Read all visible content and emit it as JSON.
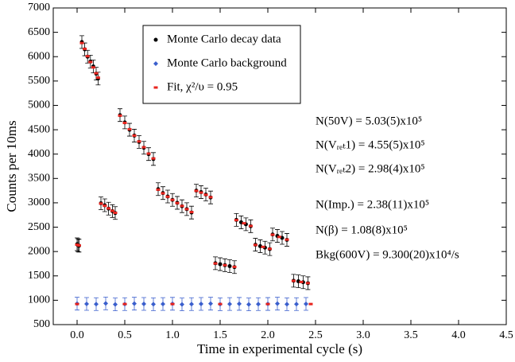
{
  "chart_data": {
    "type": "scatter",
    "xlabel": "Time in experimental cycle (s)",
    "ylabel": "Counts per 10ms",
    "xlim": [
      -0.25,
      4.5
    ],
    "xticks": [
      {
        "value": 0,
        "label": "0.0"
      },
      0.5,
      {
        "value": 1,
        "label": "1.0"
      },
      1.5,
      {
        "value": 2,
        "label": "2.0"
      },
      2.5,
      {
        "value": 3,
        "label": "3.0"
      },
      3.5,
      {
        "value": 4,
        "label": "4.0"
      },
      4.5
    ],
    "ylim": [
      500,
      7000
    ],
    "yticks": [
      500,
      1000,
      1500,
      2000,
      2500,
      3000,
      3500,
      4000,
      4500,
      5000,
      5500,
      6000,
      6500,
      7000
    ],
    "legend_loc": "upper center",
    "series": [
      {
        "name": "Monte Carlo decay data",
        "color": "#000000",
        "marker": "circle",
        "x": [
          0.0,
          0.01,
          0.02,
          0.05,
          0.08,
          0.11,
          0.14,
          0.17,
          0.2,
          0.22,
          0.25,
          0.29,
          0.33,
          0.37,
          0.4,
          0.45,
          0.5,
          0.55,
          0.6,
          0.65,
          0.7,
          0.75,
          0.8,
          0.85,
          0.9,
          0.95,
          1.0,
          1.05,
          1.1,
          1.15,
          1.2,
          1.25,
          1.3,
          1.35,
          1.4,
          1.45,
          1.5,
          1.55,
          1.6,
          1.65,
          1.67,
          1.72,
          1.77,
          1.82,
          1.87,
          1.92,
          1.97,
          2.02,
          2.05,
          2.1,
          2.15,
          2.2,
          2.27,
          2.32,
          2.37,
          2.42
        ],
        "values": [
          2150,
          2130,
          2120,
          6300,
          6150,
          6000,
          5900,
          5800,
          5650,
          5550,
          2990,
          2950,
          2880,
          2830,
          2790,
          4800,
          4650,
          4500,
          4380,
          4250,
          4130,
          4000,
          3900,
          3280,
          3200,
          3130,
          3060,
          3000,
          2930,
          2870,
          2800,
          3250,
          3220,
          3170,
          3110,
          1760,
          1740,
          1720,
          1700,
          1680,
          2650,
          2600,
          2560,
          2520,
          2140,
          2110,
          2080,
          2050,
          2350,
          2320,
          2280,
          2240,
          1400,
          1390,
          1370,
          1350
        ]
      },
      {
        "name": "Monte Carlo background",
        "color": "#3a5fcd",
        "marker": "diamond",
        "x": [
          0.0,
          0.1,
          0.2,
          0.3,
          0.4,
          0.5,
          0.6,
          0.7,
          0.8,
          0.9,
          1.0,
          1.1,
          1.2,
          1.3,
          1.4,
          1.5,
          1.6,
          1.7,
          1.8,
          1.9,
          2.0,
          2.1,
          2.2,
          2.3,
          2.4
        ],
        "values": [
          930,
          925,
          920,
          935,
          915,
          920,
          930,
          925,
          918,
          922,
          928,
          915,
          920,
          925,
          930,
          918,
          922,
          926,
          915,
          920,
          924,
          930,
          918,
          920,
          925
        ]
      },
      {
        "name": "Fit, χ²/υ = 0.95",
        "color": "#e8251f",
        "marker": "square",
        "x": [
          0.0,
          0.02,
          0.05,
          0.08,
          0.11,
          0.14,
          0.17,
          0.2,
          0.22,
          0.25,
          0.29,
          0.33,
          0.37,
          0.4,
          0.45,
          0.5,
          0.55,
          0.6,
          0.65,
          0.7,
          0.75,
          0.8,
          0.85,
          0.9,
          0.95,
          1.0,
          1.05,
          1.1,
          1.15,
          1.2,
          1.25,
          1.3,
          1.35,
          1.4,
          1.45,
          1.55,
          1.65,
          1.67,
          1.75,
          1.82,
          1.87,
          1.95,
          2.02,
          2.05,
          2.12,
          2.2,
          2.27,
          2.35,
          2.42,
          0.0,
          0.5,
          1.0,
          1.5,
          2.0,
          2.45
        ],
        "values": [
          2140,
          2125,
          6280,
          6160,
          6010,
          5890,
          5780,
          5660,
          5570,
          2985,
          2940,
          2885,
          2835,
          2795,
          4790,
          4640,
          4510,
          4380,
          4260,
          4140,
          4010,
          3910,
          3270,
          3195,
          3125,
          3060,
          2995,
          2935,
          2870,
          2810,
          3245,
          3210,
          3165,
          3115,
          1755,
          1720,
          1685,
          2645,
          2580,
          2525,
          2135,
          2095,
          2055,
          2345,
          2300,
          2245,
          1398,
          1375,
          1352,
          922,
          922,
          922,
          922,
          922,
          922
        ]
      }
    ],
    "annotations": [
      "N(50V) = 5.03(5)x10⁵",
      "N(Vᵣₑₜ1) = 4.55(5)x10⁵",
      "N(Vᵣₑₜ2) = 2.98(4)x10⁵",
      "N(Imp.) = 2.38(11)x10⁵",
      "N(β) = 1.08(8)x10⁵",
      "Bkg(600V) = 9.300(20)x10⁴/s"
    ]
  }
}
